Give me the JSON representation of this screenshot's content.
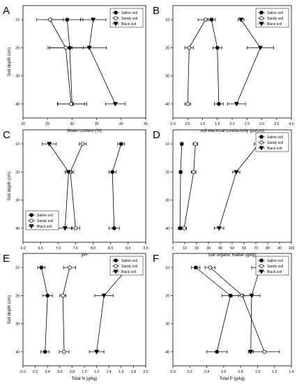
{
  "legend_markers": {
    "Saline soil": "filled-circle",
    "Sandy soil": "open-circle",
    "Black soil": "filled-triangle-down"
  },
  "colors": {
    "line": "#000000",
    "open_fill": "#ffffff",
    "background": "#ffffff"
  },
  "chart_data": [
    {
      "panel": "A",
      "type": "line",
      "xlabel": "Water content (%)",
      "ylabel": "Soil depth (cm)",
      "xlim": [
        20,
        45
      ],
      "ylim": [
        45,
        5
      ],
      "xticks": [
        20,
        25,
        30,
        35,
        40,
        45
      ],
      "yticks": [
        10,
        20,
        30,
        40
      ],
      "legend_position": "top-right",
      "grid": false,
      "series": [
        {
          "name": "Saline soil",
          "x": [
            29,
            29.5,
            30
          ],
          "xerr": [
            3.2,
            4,
            3
          ],
          "y": [
            10,
            20,
            40
          ]
        },
        {
          "name": "Sandy soil",
          "x": [
            25.5,
            28.7,
            29.8
          ],
          "xerr": [
            2.7,
            3.6,
            2.7
          ],
          "y": [
            10,
            20,
            40
          ]
        },
        {
          "name": "Black soil",
          "x": [
            34.3,
            33.5,
            38.8
          ],
          "xerr": [
            2.6,
            3.5,
            2.0
          ],
          "y": [
            10,
            20,
            40
          ]
        }
      ]
    },
    {
      "panel": "B",
      "type": "line",
      "xlabel": "soil electrical conductivity (µs/cm)",
      "ylabel": "",
      "xlim": [
        0,
        4
      ],
      "ylim": [
        45,
        5
      ],
      "xticks": [
        0.0,
        0.5,
        1.0,
        1.5,
        2.0,
        2.5,
        3.0,
        3.5,
        4.0
      ],
      "yticks": [
        10,
        20,
        30,
        40
      ],
      "legend_position": "top-right",
      "grid": false,
      "series": [
        {
          "name": "Saline soil",
          "x": [
            1.3,
            1.5,
            1.55
          ],
          "xerr": [
            0.12,
            0.15,
            0.15
          ],
          "y": [
            10,
            20,
            40
          ]
        },
        {
          "name": "Sandy soil",
          "x": [
            1.1,
            0.55,
            0.5
          ],
          "xerr": [
            0.25,
            0.15,
            0.1
          ],
          "y": [
            10,
            20,
            40
          ]
        },
        {
          "name": "Black soil",
          "x": [
            2.3,
            2.95,
            2.15
          ],
          "xerr": [
            0.1,
            0.45,
            0.3
          ],
          "y": [
            10,
            20,
            40
          ]
        }
      ]
    },
    {
      "panel": "C",
      "type": "line",
      "xlabel": "pH",
      "ylabel": "Soil depth (cm)",
      "xlim": [
        6,
        9.5
      ],
      "ylim": [
        45,
        5
      ],
      "xticks": [
        6.0,
        6.5,
        7.0,
        7.5,
        8.0,
        8.5,
        9.0,
        9.5
      ],
      "yticks": [
        10,
        20,
        30,
        40
      ],
      "legend_position": "bottom-left",
      "grid": false,
      "series": [
        {
          "name": "Saline soil",
          "x": [
            8.8,
            8.55,
            8.6
          ],
          "xerr": [
            0.1,
            0.1,
            0.15
          ],
          "y": [
            10,
            20,
            40
          ]
        },
        {
          "name": "Sandy soil",
          "x": [
            7.7,
            7.35,
            7.5
          ],
          "xerr": [
            0.1,
            0.1,
            0.12
          ],
          "y": [
            10,
            20,
            40
          ]
        },
        {
          "name": "Black soil",
          "x": [
            6.75,
            7.3,
            7.2
          ],
          "xerr": [
            0.2,
            0.1,
            0.2
          ],
          "y": [
            10,
            20,
            40
          ]
        }
      ]
    },
    {
      "panel": "D",
      "type": "line",
      "xlabel": "Soil organic matter (g/kg)",
      "ylabel": "",
      "xlim": [
        0,
        100
      ],
      "ylim": [
        45,
        5
      ],
      "xticks": [
        0,
        10,
        20,
        30,
        40,
        50,
        60,
        70,
        80,
        90,
        100
      ],
      "yticks": [
        10,
        20,
        30,
        40
      ],
      "legend_position": "top-right",
      "grid": false,
      "series": [
        {
          "name": "Saline soil",
          "x": [
            7.5,
            6.5,
            6
          ],
          "xerr": [
            1,
            1,
            1.5
          ],
          "y": [
            10,
            20,
            40
          ]
        },
        {
          "name": "Sandy soil",
          "x": [
            19,
            17.5,
            9.5
          ],
          "xerr": [
            2,
            2,
            2
          ],
          "y": [
            10,
            20,
            40
          ]
        },
        {
          "name": "Black soil",
          "x": [
            72.5,
            53.5,
            39
          ],
          "xerr": [
            4,
            3,
            4
          ],
          "y": [
            10,
            20,
            40
          ]
        }
      ]
    },
    {
      "panel": "E",
      "type": "line",
      "xlabel": "Total N (g/kg)",
      "ylabel": "Soil depth (cm)",
      "xlim": [
        0,
        2
      ],
      "ylim": [
        45,
        5
      ],
      "xticks": [
        0.0,
        0.2,
        0.4,
        0.6,
        0.8,
        1.0,
        1.2,
        1.4,
        1.6,
        1.8,
        2.0
      ],
      "yticks": [
        10,
        20,
        30,
        40
      ],
      "legend_position": "top-right",
      "grid": false,
      "series": [
        {
          "name": "Saline soil",
          "x": [
            0.3,
            0.4,
            0.36
          ],
          "xerr": [
            0.06,
            0.08,
            0.07
          ],
          "y": [
            10,
            20,
            40
          ]
        },
        {
          "name": "Sandy soil",
          "x": [
            0.76,
            0.65,
            0.67
          ],
          "xerr": [
            0.1,
            0.05,
            0.08
          ],
          "y": [
            10,
            20,
            40
          ]
        },
        {
          "name": "Black soil",
          "x": [
            1.72,
            1.32,
            1.2
          ],
          "xerr": [
            0.1,
            0.15,
            0.12
          ],
          "y": [
            10,
            20,
            40
          ]
        }
      ]
    },
    {
      "panel": "F",
      "type": "line",
      "xlabel": "Total P (g/kg)",
      "ylabel": "",
      "xlim": [
        0,
        1.4
      ],
      "ylim": [
        45,
        5
      ],
      "xticks": [
        0.0,
        0.2,
        0.4,
        0.6,
        0.8,
        1.0,
        1.2,
        1.4
      ],
      "yticks": [
        10,
        20,
        30,
        40
      ],
      "legend_position": "top-right",
      "grid": false,
      "series": [
        {
          "name": "Saline soil",
          "x": [
            0.27,
            0.68,
            0.52
          ],
          "xerr": [
            0.05,
            0.1,
            0.12
          ],
          "y": [
            10,
            20,
            40
          ]
        },
        {
          "name": "Sandy soil",
          "x": [
            0.44,
            0.82,
            1.08
          ],
          "xerr": [
            0.06,
            0.12,
            0.18
          ],
          "y": [
            10,
            20,
            40
          ]
        },
        {
          "name": "Black soil",
          "x": [
            1.03,
            0.93,
            0.92
          ],
          "xerr": [
            0.1,
            0.1,
            0.03
          ],
          "y": [
            10,
            20,
            40
          ]
        }
      ]
    }
  ]
}
